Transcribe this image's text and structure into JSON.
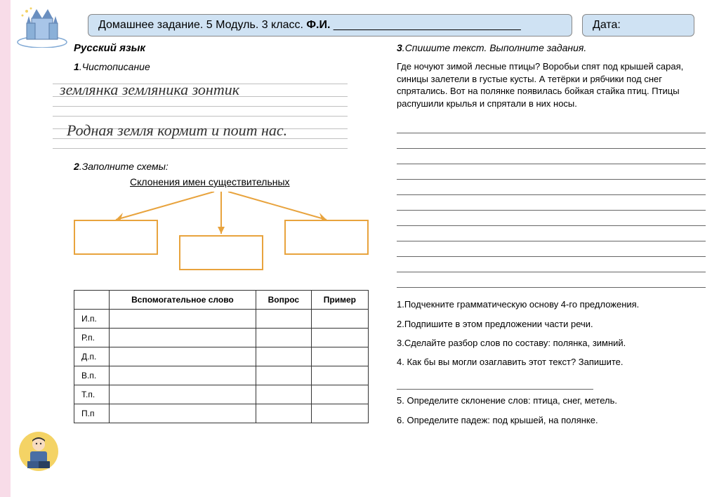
{
  "header": {
    "title_prefix": "Домашнее задание. 5 Модуль. 3 класс. ",
    "fi_label": "Ф.И.",
    "fi_blank": "______________________________",
    "date_label": "Дата:"
  },
  "subject": "Русский язык",
  "task1": {
    "num": "1",
    "label": "Чистописание",
    "line1": "землянка    земляника    зонтик",
    "line2": "Родная земля кормит и поит нас."
  },
  "task2": {
    "num": "2",
    "label": "Заполните схемы:",
    "scheme_title": "Склонения имен существительных",
    "box_border_color": "#e8a33d",
    "arrow_color": "#e8a33d"
  },
  "table": {
    "headers": [
      "",
      "Вспомогательное слово",
      "Вопрос",
      "Пример"
    ],
    "rows": [
      "И.п.",
      "Р.п.",
      "Д.п.",
      "В.п.",
      "Т.п.",
      "П.п"
    ]
  },
  "task3": {
    "num": "3",
    "label": "Спишите текст. Выполните задания.",
    "text": "Где ночуют зимой лесные птицы? Воробьи спят под крышей сарая, синицы залетели в густые кусты. А тетёрки и рябчики под снег спрятались. Вот на полянке появилась бойкая стайка птиц. Птицы распушили крылья и спрятали в них носы.",
    "blank_lines": 11,
    "subtasks": [
      "1.Подчекните грамматическую основу 4-го предложения.",
      "2.Подпишите в этом предложении части речи.",
      "3.Сделайте разбор слов по составу:  полянка,   зимний.",
      "4. Как бы вы могли озаглавить этот текст? Запишите.",
      "5. Определите склонение слов:  птица, снег, метель.",
      "6. Определите падеж: под крышей, на полянке."
    ]
  },
  "colors": {
    "header_bg": "#cfe2f3",
    "stripe": "#f8dce8",
    "line_color": "#666"
  }
}
